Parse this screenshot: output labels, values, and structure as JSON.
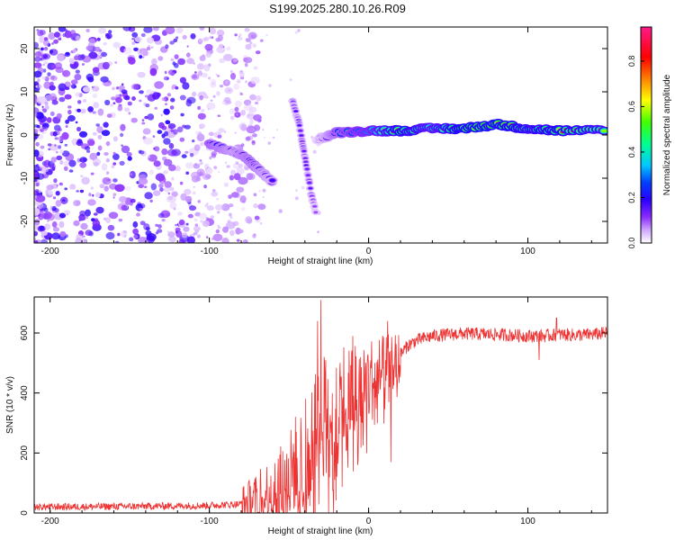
{
  "figure": {
    "title": "S199.2025.280.10.26.R09"
  },
  "chart_data": [
    {
      "type": "heatmap",
      "title": "",
      "xlabel": "Height of straight line (km)",
      "ylabel": "Frequency (Hz)",
      "xlim": [
        -210,
        150
      ],
      "ylim": [
        -25,
        25
      ],
      "xticks": [
        -200,
        -100,
        0,
        100
      ],
      "yticks": [
        -20,
        -10,
        0,
        10,
        20
      ],
      "colorbar": {
        "label": "Normalized spectral amplitude",
        "range": [
          0,
          0.95
        ],
        "ticks": [
          "0.0",
          "0.2",
          "0.4",
          "0.6",
          "0.8"
        ],
        "tick_values": [
          0,
          0.2,
          0.4,
          0.6,
          0.8
        ],
        "colors": [
          "#ffffff",
          "#b65cff",
          "#5a00ff",
          "#0000ff",
          "#00c8ff",
          "#00ff80",
          "#80ff00",
          "#ffff00",
          "#ff8000",
          "#ff0000",
          "#ff00b0"
        ]
      },
      "features": {
        "noise_region_x": [
          -210,
          -75
        ],
        "noise_amplitude": [
          0.02,
          0.2
        ],
        "descending_branch": [
          {
            "x": -100,
            "y": -2,
            "amp": 0.35
          },
          {
            "x": -92,
            "y": -3,
            "amp": 0.3
          },
          {
            "x": -84,
            "y": -4,
            "amp": 0.25
          },
          {
            "x": -78,
            "y": -5,
            "amp": 0.3
          },
          {
            "x": -72,
            "y": -7,
            "amp": 0.3
          },
          {
            "x": -66,
            "y": -9,
            "amp": 0.25
          },
          {
            "x": -60,
            "y": -11,
            "amp": 0.2
          }
        ],
        "steep_branch": [
          {
            "x": -48,
            "y": 8,
            "amp": 0.15
          },
          {
            "x": -44,
            "y": 3,
            "amp": 0.15
          },
          {
            "x": -40,
            "y": -5,
            "amp": 0.15
          },
          {
            "x": -36,
            "y": -14,
            "amp": 0.15
          },
          {
            "x": -33,
            "y": -18,
            "amp": 0.1
          }
        ],
        "carrier": [
          {
            "x": -32,
            "y": -1,
            "amp": 0.1
          },
          {
            "x": -20,
            "y": 0.5,
            "amp": 0.35
          },
          {
            "x": 0,
            "y": 1,
            "amp": 0.5
          },
          {
            "x": 20,
            "y": 1,
            "amp": 0.75
          },
          {
            "x": 40,
            "y": 1.5,
            "amp": 0.6
          },
          {
            "x": 60,
            "y": 1.5,
            "amp": 0.8
          },
          {
            "x": 80,
            "y": 2.5,
            "amp": 0.85
          },
          {
            "x": 100,
            "y": 1.5,
            "amp": 0.7
          },
          {
            "x": 120,
            "y": 1,
            "amp": 0.75
          },
          {
            "x": 150,
            "y": 1,
            "amp": 0.65
          }
        ]
      }
    },
    {
      "type": "line",
      "title": "",
      "xlabel": "Height of straight line (km)",
      "ylabel": "SNR (10 * v/v)",
      "xlim": [
        -210,
        150
      ],
      "ylim": [
        0,
        720
      ],
      "xticks": [
        -200,
        -100,
        0,
        100
      ],
      "yticks": [
        0,
        200,
        400,
        600
      ],
      "series": [
        {
          "name": "SNR",
          "color": "#ee3333",
          "x": [
            -210,
            -150,
            -100,
            -80,
            -70,
            -60,
            -50,
            -45,
            -40,
            -35,
            -30,
            -25,
            -20,
            -15,
            -10,
            -5,
            0,
            5,
            10,
            15,
            20,
            25,
            30,
            40,
            50,
            60,
            80,
            100,
            110,
            120,
            130,
            140,
            150
          ],
          "y": [
            20,
            22,
            25,
            30,
            45,
            80,
            120,
            180,
            200,
            250,
            300,
            330,
            360,
            380,
            400,
            420,
            440,
            460,
            480,
            500,
            530,
            560,
            575,
            590,
            595,
            598,
            595,
            590,
            590,
            595,
            593,
            595,
            600
          ],
          "peaks": [
            {
              "x": -30,
              "y": 710
            },
            {
              "x": -32,
              "y": 640
            },
            {
              "x": -28,
              "y": 520
            },
            {
              "x": -10,
              "y": 590
            },
            {
              "x": 12,
              "y": 640
            },
            {
              "x": 14,
              "y": 170
            },
            {
              "x": 118,
              "y": 650
            },
            {
              "x": 107,
              "y": 510
            }
          ]
        }
      ]
    }
  ]
}
